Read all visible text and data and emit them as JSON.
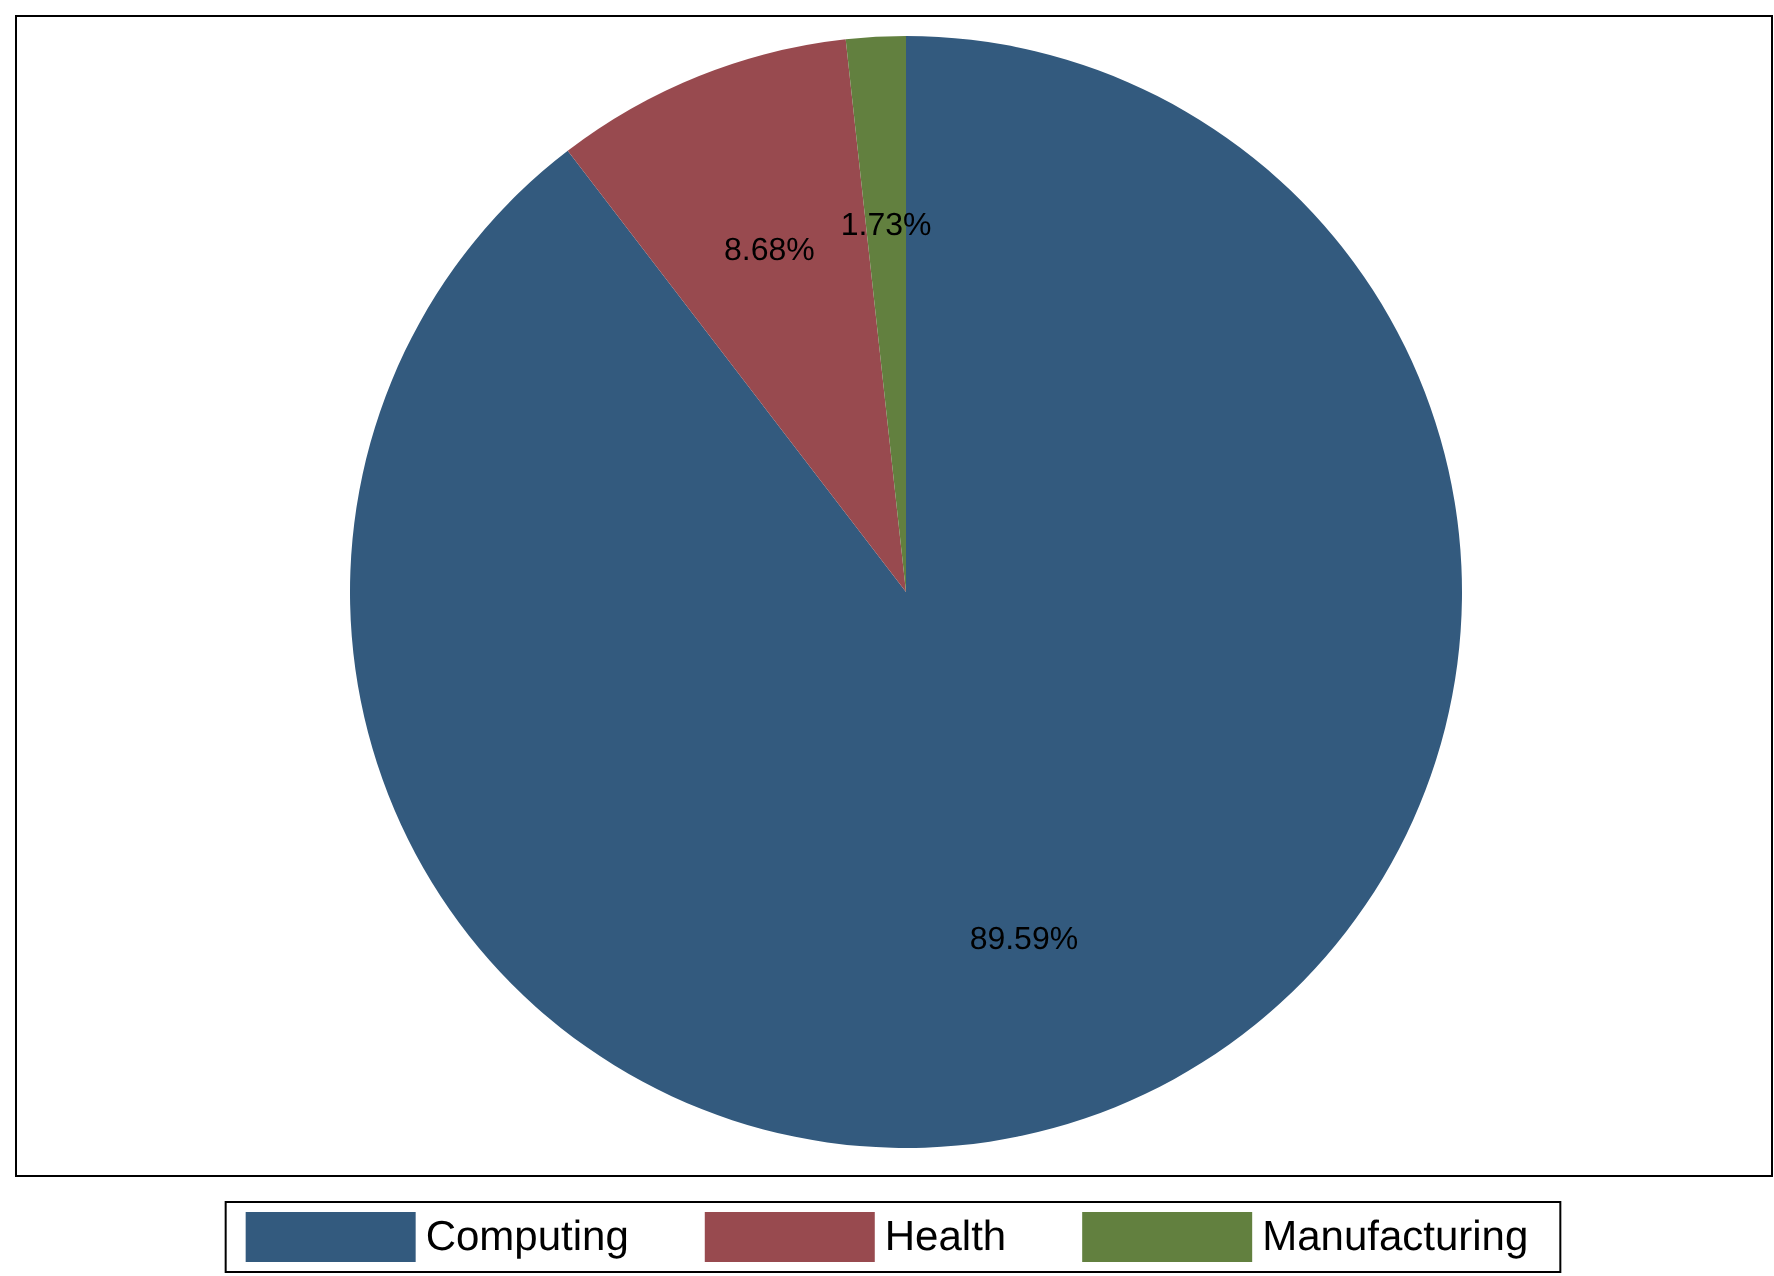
{
  "chart_data": {
    "type": "pie",
    "categories": [
      "Computing",
      "Health",
      "Manufacturing"
    ],
    "values": [
      89.59,
      8.68,
      1.73
    ],
    "colors": [
      "#335a7e",
      "#984a4f",
      "#62803f"
    ],
    "value_labels": [
      "89.59%",
      "8.68%",
      "1.73%"
    ],
    "legend": "bottom"
  }
}
